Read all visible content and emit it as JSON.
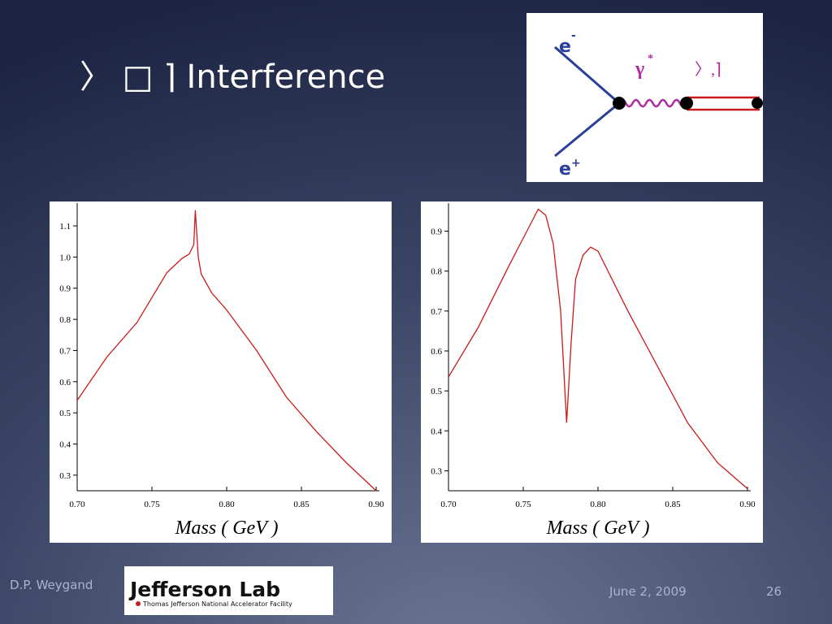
{
  "slide": {
    "title": "〉 □ ⌉ Interference",
    "author": "D.P. Weygand",
    "date": "June 2, 2009",
    "page": "26",
    "logo": {
      "name": "Jefferson Lab",
      "subtitle": "Thomas Jefferson National Accelerator Facility"
    }
  },
  "diagram": {
    "electron": "e",
    "electron_sign": "-",
    "photon": "γ",
    "photon_star": "*",
    "meson": "〉,⌉",
    "positron": "e",
    "positron_sign": "+"
  },
  "chart_data": [
    {
      "type": "line",
      "x_label": "Mass ( GeV )",
      "color": "#cc1a1a",
      "x": [
        0.7,
        0.72,
        0.74,
        0.76,
        0.77,
        0.775,
        0.778,
        0.779,
        0.781,
        0.783,
        0.79,
        0.8,
        0.82,
        0.84,
        0.86,
        0.88,
        0.9
      ],
      "values": [
        0.54,
        0.68,
        0.79,
        0.95,
        0.995,
        1.01,
        1.04,
        1.15,
        1.0,
        0.945,
        0.885,
        0.83,
        0.7,
        0.55,
        0.44,
        0.34,
        0.25
      ],
      "xlim": [
        0.7,
        0.9
      ],
      "xticks": [
        {
          "value": 0.7,
          "label": "0.70"
        },
        {
          "value": 0.75,
          "label": "0.75"
        },
        {
          "value": 0.8,
          "label": "0.80"
        },
        {
          "value": 0.85,
          "label": "0.85"
        },
        {
          "value": 0.9,
          "label": "0.90"
        }
      ],
      "ylim": [
        0.25,
        1.16
      ],
      "yticks": [
        0.3,
        0.4,
        0.5,
        0.6,
        0.7,
        0.8,
        0.9,
        {
          "value": 1,
          "label": "1.0"
        },
        1.1
      ]
    },
    {
      "type": "line",
      "x_label": "Mass ( GeV )",
      "color": "#cc1a1a",
      "x": [
        0.7,
        0.72,
        0.74,
        0.76,
        0.765,
        0.77,
        0.775,
        0.779,
        0.782,
        0.785,
        0.79,
        0.795,
        0.8,
        0.82,
        0.84,
        0.86,
        0.88,
        0.9
      ],
      "values": [
        0.535,
        0.66,
        0.81,
        0.955,
        0.94,
        0.87,
        0.7,
        0.42,
        0.62,
        0.78,
        0.84,
        0.86,
        0.85,
        0.7,
        0.56,
        0.42,
        0.32,
        0.255
      ],
      "xlim": [
        0.7,
        0.9
      ],
      "xticks": [
        {
          "value": 0.7,
          "label": "0.70"
        },
        {
          "value": 0.75,
          "label": "0.75"
        },
        {
          "value": 0.8,
          "label": "0.80"
        },
        {
          "value": 0.85,
          "label": "0.85"
        },
        {
          "value": 0.9,
          "label": "0.90"
        }
      ],
      "ylim": [
        0.25,
        0.96
      ],
      "yticks": [
        0.3,
        0.4,
        0.5,
        0.6,
        0.7,
        0.8,
        0.9
      ]
    }
  ]
}
